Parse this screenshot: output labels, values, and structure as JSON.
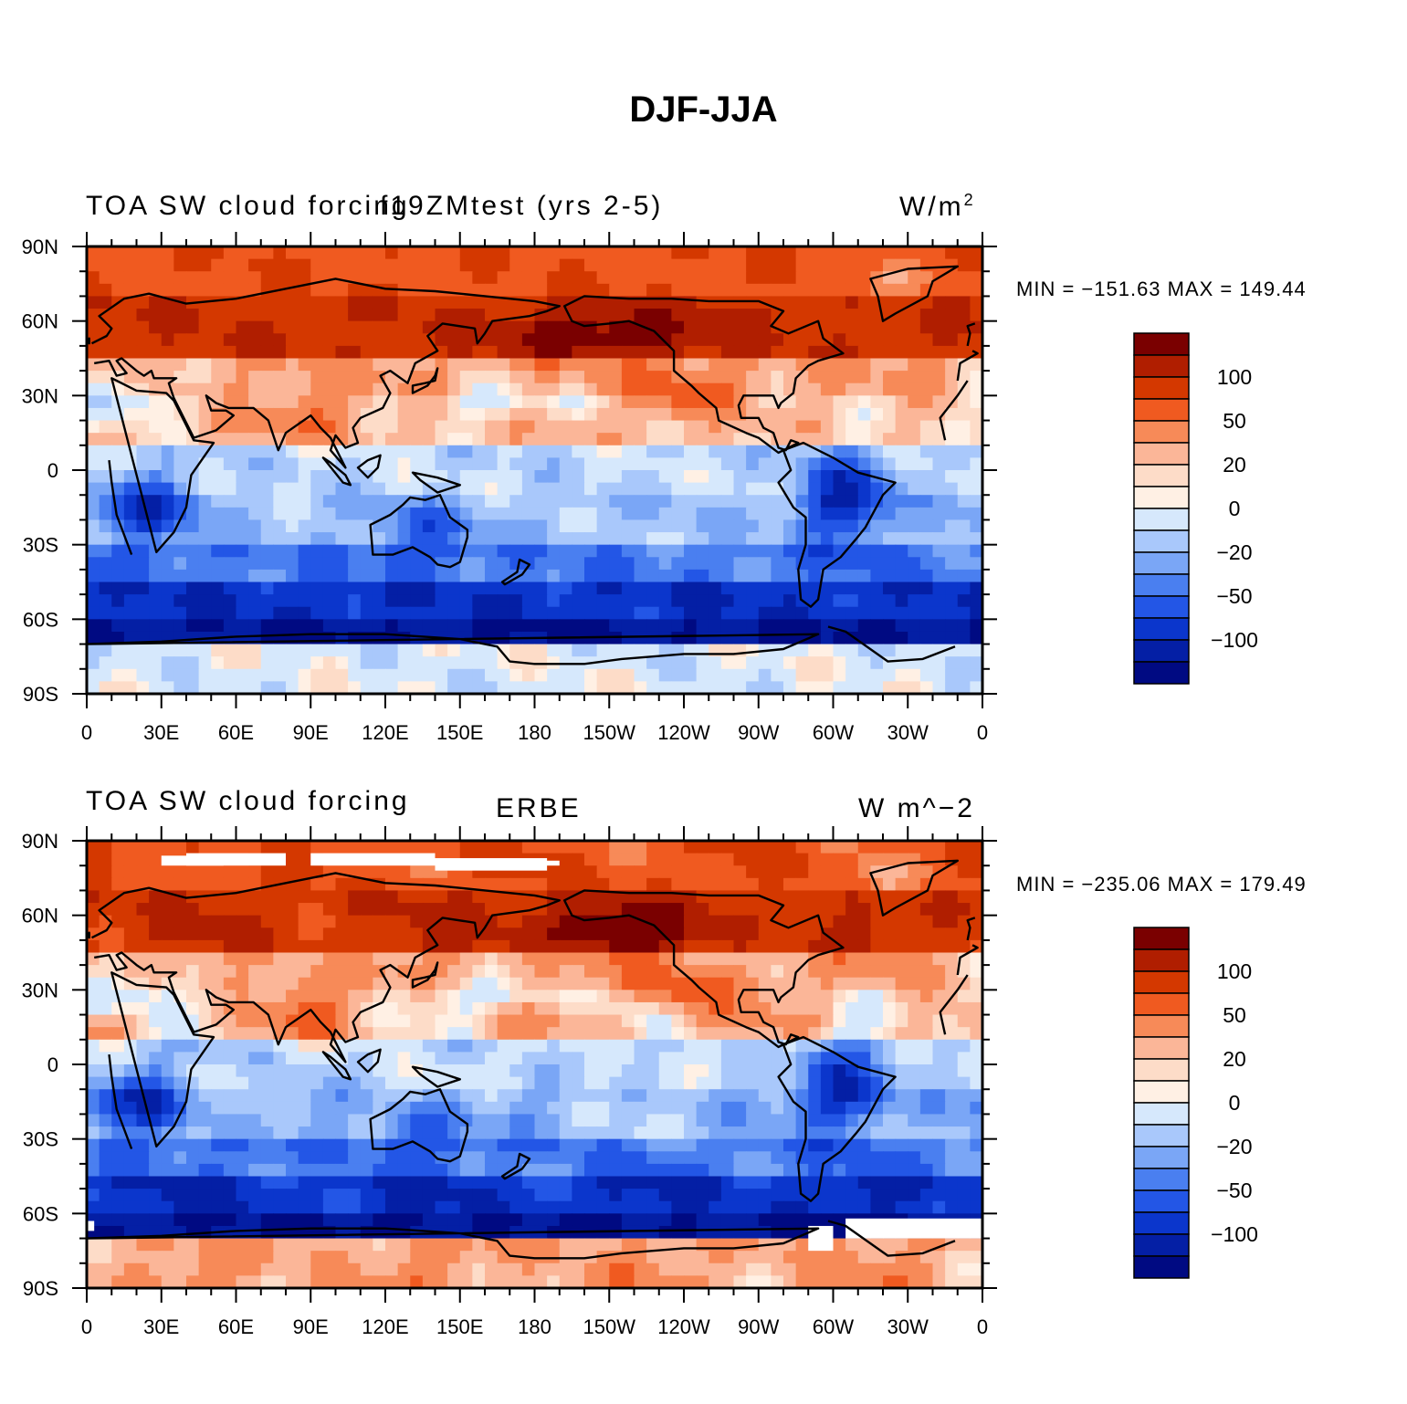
{
  "figure_title": "DJF-JJA",
  "colors": {
    "levels": [
      "#7a0000",
      "#b01e00",
      "#d43800",
      "#f05a20",
      "#f78a58",
      "#fbb698",
      "#fddcc8",
      "#fff0e4",
      "#d6e8fc",
      "#a9c8fb",
      "#7aa6f6",
      "#4a7ff0",
      "#2356e6",
      "#0b36cc",
      "#041fa5",
      "#000a82"
    ],
    "coast": "#000000",
    "missing": "#ffffff"
  },
  "axes": {
    "lon_ticks": [
      "0",
      "30E",
      "60E",
      "90E",
      "120E",
      "150E",
      "180",
      "150W",
      "120W",
      "90W",
      "60W",
      "30W",
      "0"
    ],
    "lat_ticks": [
      "90N",
      "60N",
      "30N",
      "0",
      "30S",
      "60S",
      "90S"
    ]
  },
  "panels": [
    {
      "left_title": "TOA SW cloud forcing",
      "center_title": "f19ZMtest (yrs 2-5)",
      "units_text": "W/m",
      "units_sup": "2",
      "stats": "MIN = −151.63 MAX = 149.44",
      "colorbar_labels": [
        "100",
        "50",
        "20",
        "0",
        "−20",
        "−50",
        "−100"
      ],
      "missing_data": false
    },
    {
      "left_title": "TOA SW cloud forcing",
      "center_title": "ERBE",
      "units_text": "W m^−2",
      "units_sup": "",
      "stats": "MIN = −235.06 MAX = 179.49",
      "colorbar_labels": [
        "100",
        "50",
        "20",
        "0",
        "−20",
        "−50",
        "−100"
      ],
      "missing_data": true
    }
  ],
  "chart_data": [
    {
      "type": "heatmap",
      "title": "TOA SW cloud forcing f19ZMtest (yrs 2-5)",
      "units": "W/m2",
      "x_range": [
        0,
        360
      ],
      "y_range": [
        -90,
        90
      ],
      "contour_levels": [
        -150,
        -125,
        -100,
        -75,
        -50,
        -40,
        -30,
        -20,
        -10,
        0,
        10,
        20,
        30,
        40,
        50,
        75,
        100,
        125,
        150
      ],
      "min": -151.63,
      "max": 149.44
    },
    {
      "type": "heatmap",
      "title": "TOA SW cloud forcing ERBE",
      "units": "W m^-2",
      "x_range": [
        0,
        360
      ],
      "y_range": [
        -90,
        90
      ],
      "contour_levels": [
        -150,
        -125,
        -100,
        -75,
        -50,
        -40,
        -30,
        -20,
        -10,
        0,
        10,
        20,
        30,
        40,
        50,
        75,
        100,
        125,
        150
      ],
      "min": -235.06,
      "max": 179.49
    }
  ]
}
